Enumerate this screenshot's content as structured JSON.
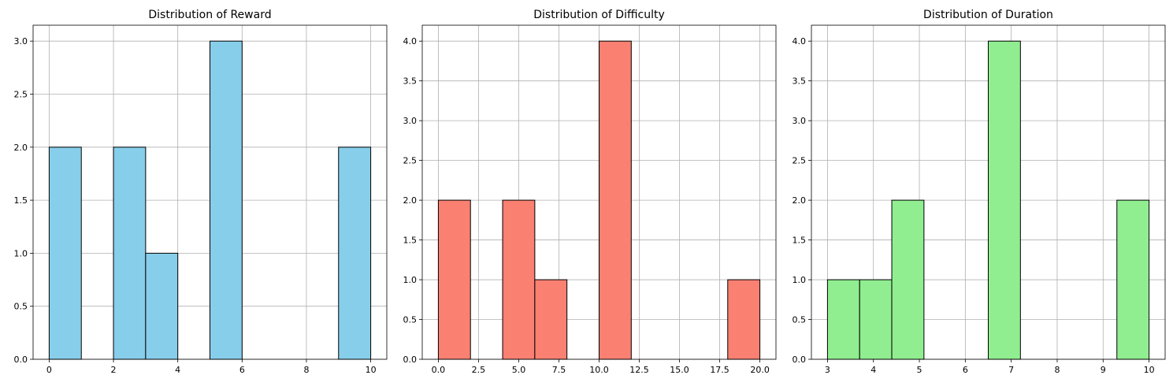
{
  "chart_data": [
    {
      "type": "bar",
      "title": "Distribution of Reward",
      "xlabel": "",
      "ylabel": "",
      "color": "#87ceeb",
      "xlim": [
        -0.5,
        10.5
      ],
      "ylim": [
        0,
        3.15
      ],
      "xticks": [
        0,
        2,
        4,
        6,
        8,
        10
      ],
      "xtick_labels": [
        "0",
        "2",
        "4",
        "6",
        "8",
        "10"
      ],
      "yticks": [
        0,
        0.5,
        1.0,
        1.5,
        2.0,
        2.5,
        3.0
      ],
      "ytick_labels": [
        "0.0",
        "0.5",
        "1.0",
        "1.5",
        "2.0",
        "2.5",
        "3.0"
      ],
      "grid": true,
      "bins": [
        {
          "x0": 0,
          "x1": 1,
          "count": 2
        },
        {
          "x0": 1,
          "x1": 2,
          "count": 0
        },
        {
          "x0": 2,
          "x1": 3,
          "count": 2
        },
        {
          "x0": 3,
          "x1": 4,
          "count": 1
        },
        {
          "x0": 4,
          "x1": 5,
          "count": 0
        },
        {
          "x0": 5,
          "x1": 6,
          "count": 3
        },
        {
          "x0": 6,
          "x1": 7,
          "count": 0
        },
        {
          "x0": 7,
          "x1": 8,
          "count": 0
        },
        {
          "x0": 8,
          "x1": 9,
          "count": 0
        },
        {
          "x0": 9,
          "x1": 10,
          "count": 2
        }
      ]
    },
    {
      "type": "bar",
      "title": "Distribution of Difficulty",
      "xlabel": "",
      "ylabel": "",
      "color": "#fa8072",
      "xlim": [
        -1,
        21
      ],
      "ylim": [
        0,
        4.2
      ],
      "xticks": [
        0,
        2.5,
        5,
        7.5,
        10,
        12.5,
        15,
        17.5,
        20
      ],
      "xtick_labels": [
        "0.0",
        "2.5",
        "5.0",
        "7.5",
        "10.0",
        "12.5",
        "15.0",
        "17.5",
        "20.0"
      ],
      "yticks": [
        0,
        0.5,
        1.0,
        1.5,
        2.0,
        2.5,
        3.0,
        3.5,
        4.0
      ],
      "ytick_labels": [
        "0.0",
        "0.5",
        "1.0",
        "1.5",
        "2.0",
        "2.5",
        "3.0",
        "3.5",
        "4.0"
      ],
      "grid": true,
      "bins": [
        {
          "x0": 0,
          "x1": 2,
          "count": 2
        },
        {
          "x0": 2,
          "x1": 4,
          "count": 0
        },
        {
          "x0": 4,
          "x1": 6,
          "count": 2
        },
        {
          "x0": 6,
          "x1": 8,
          "count": 1
        },
        {
          "x0": 8,
          "x1": 10,
          "count": 0
        },
        {
          "x0": 10,
          "x1": 12,
          "count": 4
        },
        {
          "x0": 12,
          "x1": 14,
          "count": 0
        },
        {
          "x0": 14,
          "x1": 16,
          "count": 0
        },
        {
          "x0": 16,
          "x1": 18,
          "count": 0
        },
        {
          "x0": 18,
          "x1": 20,
          "count": 1
        }
      ]
    },
    {
      "type": "bar",
      "title": "Distribution of Duration",
      "xlabel": "",
      "ylabel": "",
      "color": "#90ee90",
      "xlim": [
        2.65,
        10.35
      ],
      "ylim": [
        0,
        4.2
      ],
      "xticks": [
        3,
        4,
        5,
        6,
        7,
        8,
        9,
        10
      ],
      "xtick_labels": [
        "3",
        "4",
        "5",
        "6",
        "7",
        "8",
        "9",
        "10"
      ],
      "yticks": [
        0,
        0.5,
        1.0,
        1.5,
        2.0,
        2.5,
        3.0,
        3.5,
        4.0
      ],
      "ytick_labels": [
        "0.0",
        "0.5",
        "1.0",
        "1.5",
        "2.0",
        "2.5",
        "3.0",
        "3.5",
        "4.0"
      ],
      "grid": true,
      "bins": [
        {
          "x0": 3.0,
          "x1": 3.7,
          "count": 1
        },
        {
          "x0": 3.7,
          "x1": 4.4,
          "count": 1
        },
        {
          "x0": 4.4,
          "x1": 5.1,
          "count": 2
        },
        {
          "x0": 5.1,
          "x1": 5.8,
          "count": 0
        },
        {
          "x0": 5.8,
          "x1": 6.5,
          "count": 0
        },
        {
          "x0": 6.5,
          "x1": 7.2,
          "count": 4
        },
        {
          "x0": 7.2,
          "x1": 7.9,
          "count": 0
        },
        {
          "x0": 7.9,
          "x1": 8.6,
          "count": 0
        },
        {
          "x0": 8.6,
          "x1": 9.3,
          "count": 0
        },
        {
          "x0": 9.3,
          "x1": 10.0,
          "count": 2
        }
      ]
    }
  ]
}
